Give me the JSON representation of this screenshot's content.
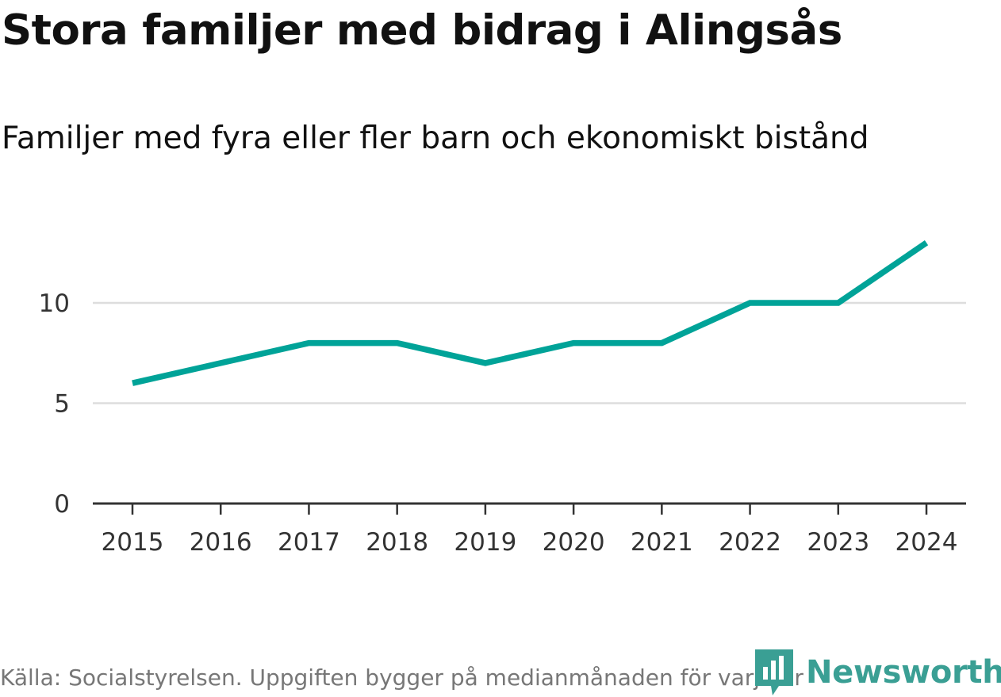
{
  "header": {
    "title": "Stora familjer med bidrag i Alingsås",
    "subtitle": "Familjer med fyra eller fler barn och ekonomiskt bistånd"
  },
  "chart_data": {
    "type": "line",
    "title": "Stora familjer med bidrag i Alingsås",
    "subtitle": "Familjer med fyra eller fler barn och ekonomiskt bistånd",
    "xlabel": "",
    "ylabel": "",
    "categories": [
      "2015",
      "2016",
      "2017",
      "2018",
      "2019",
      "2020",
      "2021",
      "2022",
      "2023",
      "2024"
    ],
    "series": [
      {
        "values": [
          6,
          7,
          8,
          8,
          7,
          8,
          8,
          10,
          10,
          13
        ],
        "color": "#00a398"
      }
    ],
    "ylim": [
      0,
      14
    ],
    "yticks": [
      0,
      5,
      10
    ],
    "grid": true,
    "gridline_color": "#dddddd",
    "axis_color": "#333333"
  },
  "footer": {
    "source": "Källa: Socialstyrelsen. Uppgiften bygger på medianmånaden för varje år",
    "brand": "Newsworthy",
    "brand_icon": "newsworthy-logo-icon",
    "brand_color": "#3a9f94"
  }
}
